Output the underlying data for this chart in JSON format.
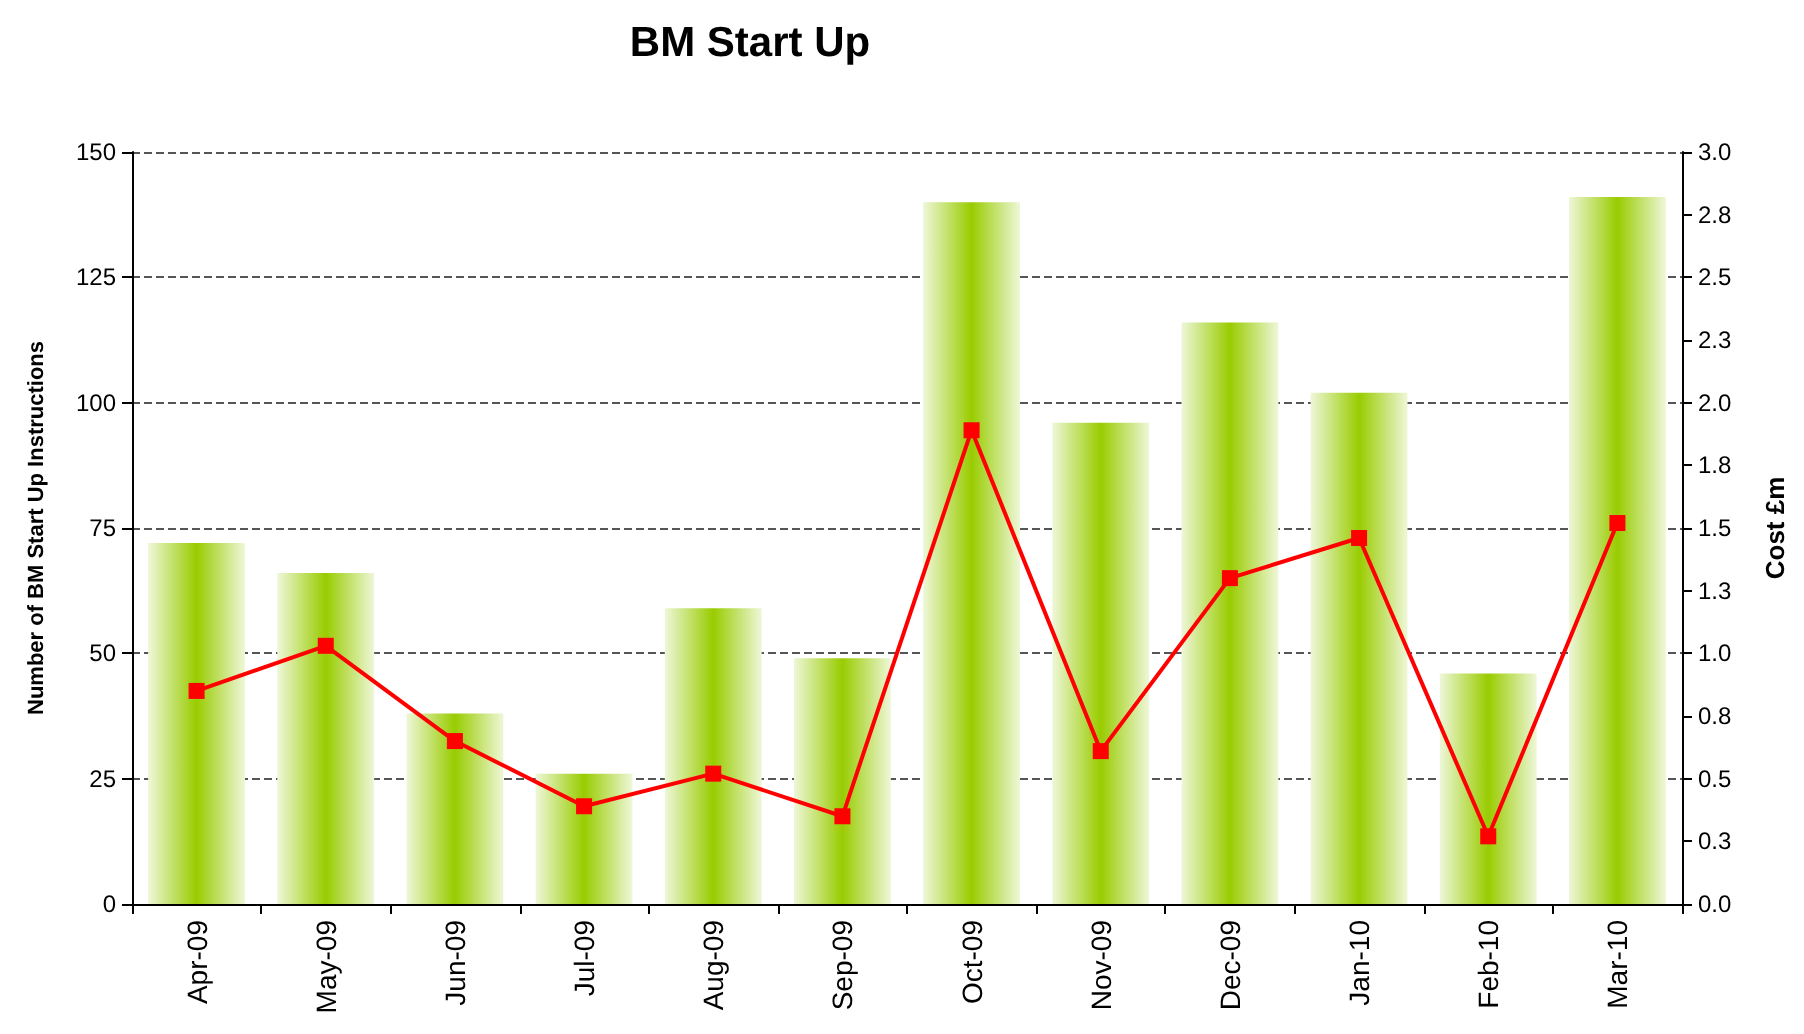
{
  "chart_data": {
    "type": "bar",
    "title": "BM Start Up",
    "ylabel": "Number of BM Start Up Instructions",
    "y2label": "Cost £m",
    "categories": [
      "Apr-09",
      "May-09",
      "Jun-09",
      "Jul-09",
      "Aug-09",
      "Sep-09",
      "Oct-09",
      "Nov-09",
      "Dec-09",
      "Jan-10",
      "Feb-10",
      "Mar-10"
    ],
    "series": [
      {
        "color": "#99cc00",
        "values": [
          72,
          66,
          38,
          26,
          59,
          49,
          140,
          96,
          116,
          102,
          46,
          141
        ]
      },
      {
        "type": "line",
        "axis": "y2",
        "color": "#ff0000",
        "marker": "square",
        "values": [
          0.85,
          1.03,
          0.65,
          0.39,
          0.52,
          0.35,
          1.89,
          0.61,
          1.3,
          1.46,
          0.27,
          1.52
        ]
      }
    ],
    "ylim": [
      0,
      150
    ],
    "yticks": [
      0,
      25,
      50,
      75,
      100,
      125,
      150
    ],
    "y2lim": [
      0,
      3
    ],
    "y2ticks": [
      {
        "value": 0,
        "label": "0.0"
      },
      {
        "value": 0.25,
        "label": "0.3"
      },
      {
        "value": 0.5,
        "label": "0.5"
      },
      {
        "value": 0.75,
        "label": "0.8"
      },
      {
        "value": 1,
        "label": "1.0"
      },
      {
        "value": 1.25,
        "label": "1.3"
      },
      {
        "value": 1.5,
        "label": "1.5"
      },
      {
        "value": 1.75,
        "label": "1.8"
      },
      {
        "value": 2,
        "label": "2.0"
      },
      {
        "value": 2.25,
        "label": "2.3"
      },
      {
        "value": 2.5,
        "label": "2.5"
      },
      {
        "value": 2.75,
        "label": "2.8"
      },
      {
        "value": 3,
        "label": "3.0"
      }
    ],
    "grid": "y",
    "line_style": "solid"
  }
}
